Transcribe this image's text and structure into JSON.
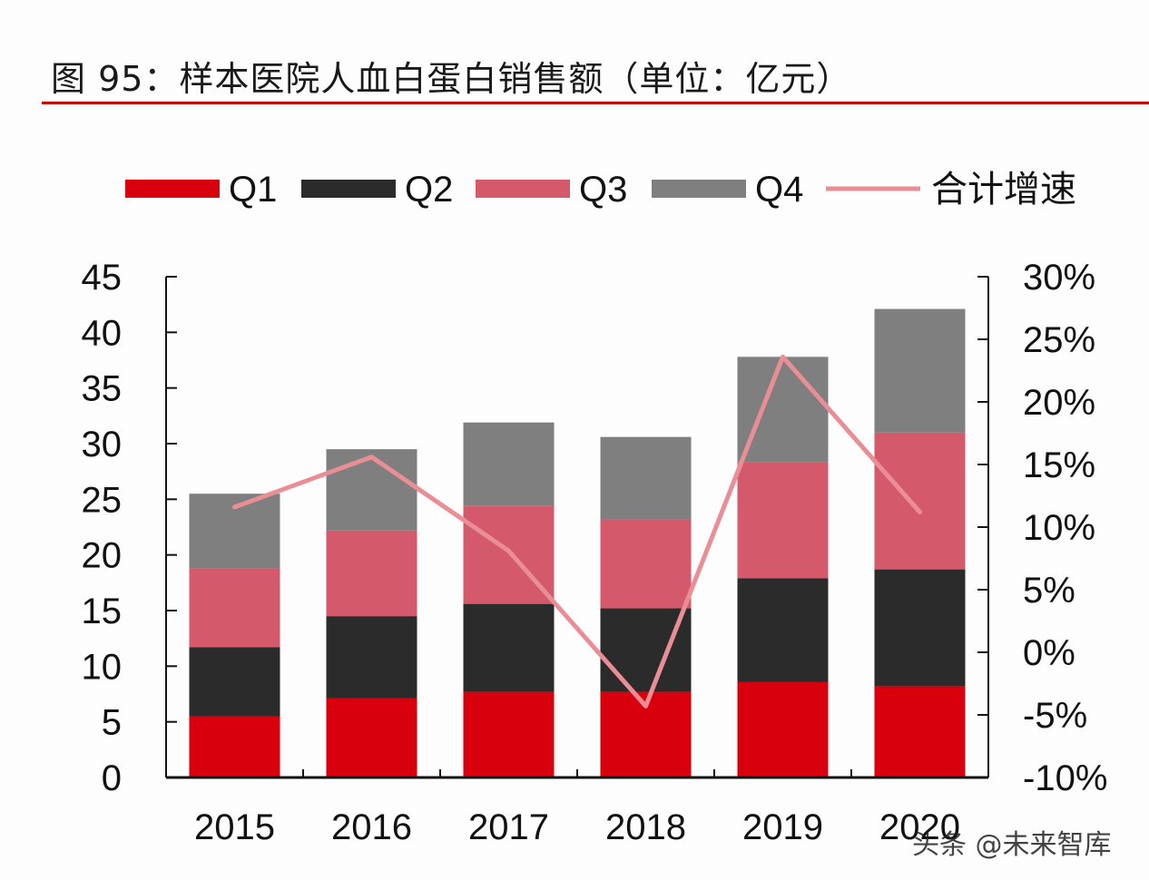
{
  "title": "图 95：样本医院人血白蛋白销售额（单位：亿元）",
  "watermark": "头条 @未来智库",
  "chart_data": {
    "type": "bar",
    "stacked": true,
    "categories": [
      "2015",
      "2016",
      "2017",
      "2018",
      "2019",
      "2020"
    ],
    "series": [
      {
        "name": "Q1",
        "color": "#d9000d",
        "values": [
          5.5,
          7.1,
          7.7,
          7.7,
          8.6,
          8.2
        ]
      },
      {
        "name": "Q2",
        "color": "#2b2b2b",
        "values": [
          6.2,
          7.4,
          7.9,
          7.5,
          9.3,
          10.5
        ]
      },
      {
        "name": "Q3",
        "color": "#d45a6b",
        "values": [
          7.1,
          7.7,
          8.8,
          8.0,
          10.4,
          12.3
        ]
      },
      {
        "name": "Q4",
        "color": "#7f7f7f",
        "values": [
          6.7,
          7.3,
          7.5,
          7.4,
          9.5,
          11.1
        ]
      }
    ],
    "line_series": {
      "name": "合计增速",
      "color": "#ea8e96",
      "axis": "right",
      "values": [
        11.6,
        15.6,
        8.1,
        -4.3,
        23.6,
        11.2
      ]
    },
    "ylim": [
      0,
      45
    ],
    "yticks": [
      "0",
      "5",
      "10",
      "15",
      "20",
      "25",
      "30",
      "35",
      "40",
      "45"
    ],
    "y2lim": [
      -10,
      30
    ],
    "y2ticks": [
      "-10%",
      "-5%",
      "0%",
      "5%",
      "10%",
      "15%",
      "20%",
      "25%",
      "30%"
    ],
    "legend_position": "top",
    "grid": false
  }
}
